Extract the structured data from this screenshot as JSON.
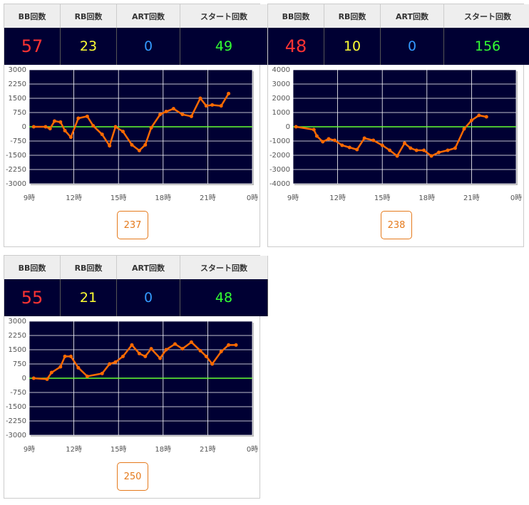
{
  "panels": [
    {
      "stats": {
        "headers": [
          "BB回数",
          "RB回数",
          "ART回数",
          "スタート回数"
        ],
        "values": [
          57,
          23,
          0,
          49
        ]
      },
      "machine": 237
    },
    {
      "stats": {
        "headers": [
          "BB回数",
          "RB回数",
          "ART回数",
          "スタート回数"
        ],
        "values": [
          48,
          10,
          0,
          156
        ]
      },
      "machine": 238
    },
    {
      "stats": {
        "headers": [
          "BB回数",
          "RB回数",
          "ART回数",
          "スタート回数"
        ],
        "values": [
          55,
          21,
          0,
          48
        ]
      },
      "machine": 250
    }
  ],
  "chart_data": [
    {
      "type": "line",
      "color": "#ff6a00",
      "grid": true,
      "xlim": [
        9,
        24
      ],
      "xticks": [
        {
          "value": 9,
          "label": "9時"
        },
        {
          "value": 12,
          "label": "12時"
        },
        {
          "value": 15,
          "label": "15時"
        },
        {
          "value": 18,
          "label": "18時"
        },
        {
          "value": 21,
          "label": "21時"
        },
        {
          "value": 24,
          "label": "0時"
        }
      ],
      "ylim": [
        -3000,
        3000
      ],
      "yticks": [
        3000,
        2250,
        1500,
        750,
        0,
        -750,
        -1500,
        -2250,
        -3000
      ],
      "x": [
        9.3,
        10.1,
        10.4,
        10.7,
        11.1,
        11.4,
        11.8,
        12.3,
        12.9,
        13.3,
        13.9,
        14.4,
        14.8,
        15.3,
        15.9,
        16.4,
        16.8,
        17.2,
        17.8,
        18.2,
        18.7,
        19.3,
        19.9,
        20.5,
        20.9,
        21.3,
        21.9,
        22.4
      ],
      "values": [
        0,
        0,
        -100,
        300,
        250,
        -200,
        -550,
        450,
        550,
        50,
        -400,
        -1000,
        0,
        -250,
        -950,
        -1250,
        -950,
        -50,
        650,
        800,
        950,
        650,
        550,
        1500,
        1100,
        1150,
        1100,
        1750
      ]
    },
    {
      "type": "line",
      "color": "#ff6a00",
      "grid": true,
      "xlim": [
        9,
        24
      ],
      "xticks": [
        {
          "value": 9,
          "label": "9時"
        },
        {
          "value": 12,
          "label": "12時"
        },
        {
          "value": 15,
          "label": "15時"
        },
        {
          "value": 18,
          "label": "18時"
        },
        {
          "value": 21,
          "label": "21時"
        },
        {
          "value": 24,
          "label": "0時"
        }
      ],
      "ylim": [
        -4000,
        4000
      ],
      "yticks": [
        4000,
        3000,
        2000,
        1000,
        0,
        -1000,
        -2000,
        -3000,
        -4000
      ],
      "x": [
        9.2,
        10.4,
        10.6,
        11.0,
        11.4,
        11.8,
        12.3,
        12.8,
        13.3,
        13.8,
        14.4,
        15.0,
        15.5,
        16.0,
        16.5,
        16.9,
        17.3,
        17.8,
        18.3,
        18.8,
        19.4,
        19.9,
        20.5,
        21.0,
        21.5,
        22.0
      ],
      "values": [
        0,
        -200,
        -650,
        -1050,
        -850,
        -950,
        -1300,
        -1450,
        -1600,
        -800,
        -950,
        -1300,
        -1650,
        -2050,
        -1150,
        -1500,
        -1650,
        -1650,
        -2050,
        -1800,
        -1650,
        -1500,
        -150,
        450,
        800,
        700
      ]
    },
    {
      "type": "line",
      "color": "#ff6a00",
      "grid": true,
      "xlim": [
        9,
        24
      ],
      "xticks": [
        {
          "value": 9,
          "label": "9時"
        },
        {
          "value": 12,
          "label": "12時"
        },
        {
          "value": 15,
          "label": "15時"
        },
        {
          "value": 18,
          "label": "18時"
        },
        {
          "value": 21,
          "label": "21時"
        },
        {
          "value": 24,
          "label": "0時"
        }
      ],
      "ylim": [
        -3000,
        3000
      ],
      "yticks": [
        3000,
        2250,
        1500,
        750,
        0,
        -750,
        -1500,
        -2250,
        -3000
      ],
      "x": [
        9.3,
        10.2,
        10.5,
        11.1,
        11.4,
        11.8,
        12.3,
        12.9,
        13.9,
        14.4,
        14.8,
        15.3,
        15.9,
        16.4,
        16.8,
        17.2,
        17.8,
        18.2,
        18.8,
        19.3,
        19.9,
        20.5,
        20.9,
        21.3,
        21.9,
        22.4,
        22.9
      ],
      "values": [
        0,
        -50,
        300,
        600,
        1150,
        1150,
        550,
        100,
        250,
        750,
        850,
        1150,
        1750,
        1300,
        1150,
        1550,
        1050,
        1500,
        1800,
        1550,
        1900,
        1450,
        1150,
        750,
        1400,
        1750,
        1750
      ]
    }
  ]
}
